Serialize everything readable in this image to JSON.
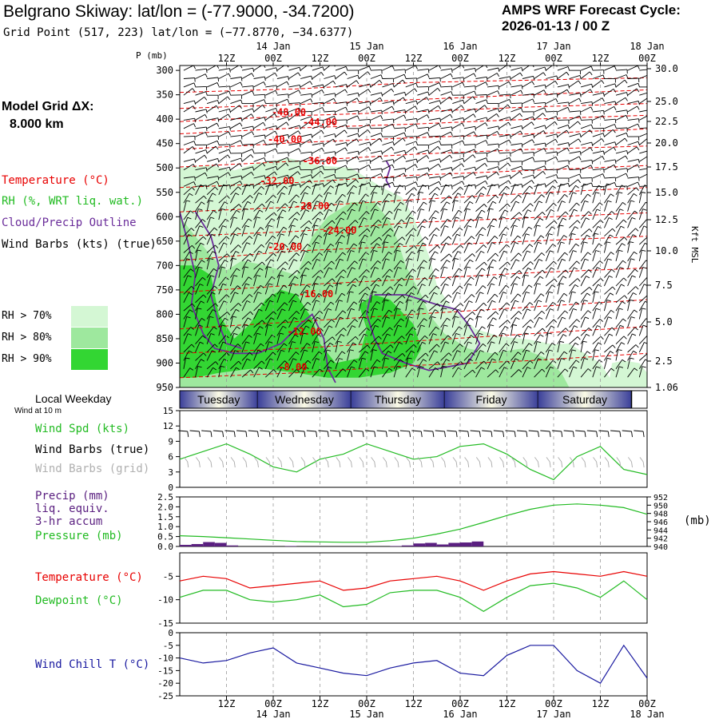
{
  "header": {
    "title": "Belgrano Skiway:  lat/lon = (-77.9000, -34.7200)",
    "subtitle": "Grid Point (517, 223) lat/lon = (−77.8770, −34.6377)",
    "cycle_label": "AMPS WRF Forecast Cycle:",
    "cycle_value": "2026-01-13 / 00  Z"
  },
  "model_grid": {
    "label": "Model Grid ΔX:",
    "value": "8.000 km"
  },
  "legend": {
    "temperature": "Temperature (°C)",
    "rh": "RH (%, WRT liq. wat.)",
    "cloud": "Cloud/Precip Outline",
    "wind": "Wind Barbs (kts) (true)",
    "rh70": "RH > 70%",
    "rh80": "RH > 80%",
    "rh90": "RH > 90%"
  },
  "colors": {
    "temperature": "#e80000",
    "rh70": "#d4f7d4",
    "rh80": "#9ee89e",
    "rh90": "#33d633",
    "cloud": "#6a2c9a",
    "precip": "#5a1f80",
    "pressure": "#22bb22",
    "dewpoint": "#22bb22",
    "windchill": "#1a1aa0",
    "barb_grid": "#aaaaaa"
  },
  "time_axis": {
    "top_labels": [
      "12Z",
      "00Z",
      "12Z",
      "00Z",
      "12Z",
      "00Z",
      "12Z",
      "00Z",
      "12Z",
      "00Z"
    ],
    "top_dates": [
      "14 Jan",
      "15 Jan",
      "16 Jan",
      "17 Jan",
      "18 Jan"
    ],
    "bottom_labels": [
      "12Z",
      "00Z",
      "12Z",
      "00Z",
      "12Z",
      "00Z",
      "12Z",
      "00Z",
      "12Z",
      "00Z"
    ],
    "bottom_dates": [
      "14 Jan",
      "15 Jan",
      "16 Jan",
      "17 Jan",
      "18 Jan"
    ]
  },
  "weekday": {
    "title": "Local Weekday",
    "wind_note": "Wind at 10 m",
    "days": [
      "Tuesday",
      "Wednesday",
      "Thursday",
      "Friday",
      "Saturday"
    ]
  },
  "panels": {
    "wind_spd": "Wind Spd (kts)",
    "wind_true": "Wind Barbs (true)",
    "wind_grid": "Wind Barbs (grid)",
    "precip1": "Precip (mm)",
    "precip2": "liq. equiv.",
    "precip3": "3-hr accum",
    "pressure": "Pressure (mb)",
    "pressure_unit": "(mb)",
    "temperature": "Temperature (°C)",
    "dewpoint": "Dewpoint (°C)",
    "windchill": "Wind Chill T (°C)"
  },
  "chart_data": [
    {
      "type": "heatmap",
      "name": "time-height cross section",
      "y_axis_title": "P (mb)",
      "y_ticks": [
        300,
        350,
        400,
        450,
        500,
        550,
        600,
        650,
        700,
        750,
        800,
        850,
        900,
        950
      ],
      "right_axis_title": "Kft MSL",
      "right_ticks": [
        "30.0",
        "25.0",
        "22.5",
        "20.0",
        "17.5",
        "15.0",
        "12.5",
        "10.0",
        "7.5",
        "5.0",
        "2.5",
        "1.06"
      ],
      "temperature_contour_labels": [
        {
          "label": "-48.00",
          "t": 28,
          "p": 392
        },
        {
          "label": "-44.00",
          "t": 36,
          "p": 413
        },
        {
          "label": "-40.00",
          "t": 27,
          "p": 448
        },
        {
          "label": "-36.00",
          "t": 36,
          "p": 492
        },
        {
          "label": "-32.00",
          "t": 25,
          "p": 533
        },
        {
          "label": "-28.00",
          "t": 34,
          "p": 585
        },
        {
          "label": "-24.00",
          "t": 41,
          "p": 635
        },
        {
          "label": "-20.00",
          "t": 27,
          "p": 668
        },
        {
          "label": "-16.00",
          "t": 35,
          "p": 765
        },
        {
          "label": "-12.00",
          "t": 32,
          "p": 842
        },
        {
          "label": "-8.00",
          "t": 29,
          "p": 915
        }
      ],
      "xlim": [
        0,
        120
      ],
      "ylim": [
        290,
        950
      ]
    },
    {
      "type": "line",
      "name": "wind speed 10 m",
      "yticks": [
        0,
        3,
        6,
        9,
        12,
        15
      ],
      "ylim": [
        0,
        15
      ],
      "x": [
        0,
        6,
        12,
        18,
        24,
        30,
        36,
        42,
        48,
        54,
        60,
        66,
        72,
        78,
        84,
        90,
        96,
        102,
        108,
        114,
        120
      ],
      "series": [
        {
          "values": [
            5.5,
            7.0,
            8.5,
            6.5,
            4.0,
            3.0,
            5.5,
            6.5,
            8.5,
            7.0,
            5.5,
            6.0,
            8.0,
            8.5,
            6.5,
            3.5,
            1.5,
            6.0,
            8.0,
            3.5,
            2.5
          ]
        }
      ]
    },
    {
      "type": "line",
      "name": "precip and pressure",
      "yticks_left": [
        "0.0",
        "0.5",
        "1.0",
        "1.5",
        "2.0",
        "2.5"
      ],
      "yticks_right": [
        "940",
        "942",
        "944",
        "946",
        "948",
        "950",
        "952"
      ],
      "ylim": [
        0,
        2.5
      ],
      "precip_bars": [
        0.08,
        0.12,
        0.22,
        0.18,
        0.05,
        0.0,
        0.0,
        0.0,
        0.0,
        0.02,
        0.0,
        0.0,
        0.0,
        0.0,
        0.0,
        0.0,
        0.0,
        0.0,
        0.02,
        0.05,
        0.15,
        0.18,
        0.1,
        0.18,
        0.2,
        0.25,
        0,
        0,
        0,
        0,
        0,
        0,
        0,
        0,
        0,
        0,
        0,
        0,
        0,
        0
      ],
      "pressure_x": [
        0,
        6,
        12,
        18,
        24,
        30,
        36,
        42,
        48,
        54,
        60,
        66,
        72,
        78,
        84,
        90,
        96,
        102,
        108,
        114,
        120
      ],
      "pressure": [
        942.6,
        942.4,
        942.1,
        941.8,
        941.5,
        941.2,
        941.1,
        941.0,
        941.0,
        941.4,
        942.0,
        943.0,
        944.2,
        945.8,
        947.5,
        949.0,
        950.0,
        950.3,
        950.0,
        949.4,
        947.8
      ]
    },
    {
      "type": "line",
      "name": "temperature and dewpoint",
      "yticks": [
        -15,
        -10,
        -5
      ],
      "ylim": [
        -15,
        0
      ],
      "x": [
        0,
        6,
        12,
        18,
        24,
        30,
        36,
        42,
        48,
        54,
        60,
        66,
        72,
        78,
        84,
        90,
        96,
        102,
        108,
        114,
        120
      ],
      "series": [
        {
          "name": "Temperature (°C)",
          "values": [
            -6.0,
            -5.0,
            -5.5,
            -7.5,
            -7.0,
            -6.5,
            -6.0,
            -8.0,
            -7.5,
            -6.0,
            -5.5,
            -5.0,
            -6.0,
            -8.0,
            -6.0,
            -4.5,
            -4.0,
            -4.5,
            -5.0,
            -4.0,
            -5.0
          ]
        },
        {
          "name": "Dewpoint (°C)",
          "values": [
            -9.5,
            -8.0,
            -8.0,
            -10.0,
            -10.5,
            -10.0,
            -9.0,
            -11.5,
            -11.0,
            -8.5,
            -8.0,
            -8.0,
            -9.5,
            -12.5,
            -9.5,
            -7.0,
            -6.5,
            -7.5,
            -9.5,
            -6.0,
            -10.0
          ]
        }
      ]
    },
    {
      "type": "line",
      "name": "wind chill",
      "yticks": [
        -25,
        -20,
        -15,
        -10,
        -5,
        0
      ],
      "ylim": [
        -25,
        0
      ],
      "x": [
        0,
        6,
        12,
        18,
        24,
        30,
        36,
        42,
        48,
        54,
        60,
        66,
        72,
        78,
        84,
        90,
        96,
        102,
        108,
        114,
        120
      ],
      "series": [
        {
          "name": "Wind Chill T (°C)",
          "values": [
            -10,
            -12,
            -11,
            -8,
            -6,
            -12,
            -14,
            -16,
            -17,
            -14,
            -12,
            -11,
            -16,
            -17,
            -9,
            -5,
            -5,
            -15,
            -20,
            -5,
            -18
          ]
        }
      ]
    }
  ]
}
